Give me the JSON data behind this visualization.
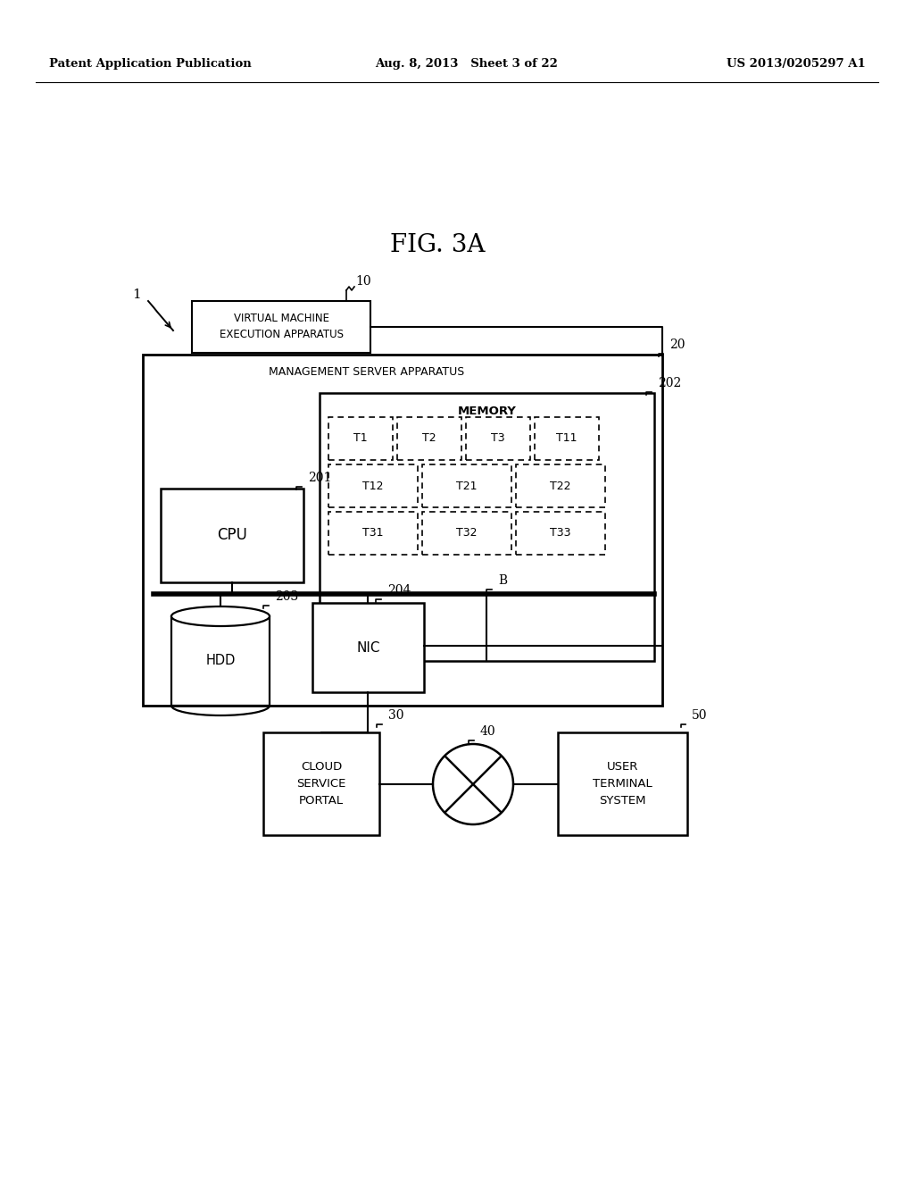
{
  "background_color": "#ffffff",
  "header_left": "Patent Application Publication",
  "header_center": "Aug. 8, 2013   Sheet 3 of 22",
  "header_right": "US 2013/0205297 A1",
  "fig_title": "FIG. 3A",
  "label_1": "1",
  "label_10": "10",
  "label_20": "20",
  "label_201": "201",
  "label_202": "202",
  "label_203": "203",
  "label_204": "204",
  "label_B": "B",
  "label_30": "30",
  "label_40": "40",
  "label_50": "50",
  "text_vm": "VIRTUAL MACHINE\nEXECUTION APPARATUS",
  "text_msa": "MANAGEMENT SERVER APPARATUS",
  "text_memory": "MEMORY",
  "text_cpu": "CPU",
  "text_hdd": "HDD",
  "text_nic": "NIC",
  "text_cloud": "CLOUD\nSERVICE\nPORTAL",
  "text_user": "USER\nTERMINAL\nSYSTEM",
  "row1_labels": [
    "T1",
    "T2",
    "T3",
    "T11"
  ],
  "row2_labels": [
    "T12",
    "T21",
    "T22"
  ],
  "row3_labels": [
    "T31",
    "T32",
    "T33"
  ]
}
